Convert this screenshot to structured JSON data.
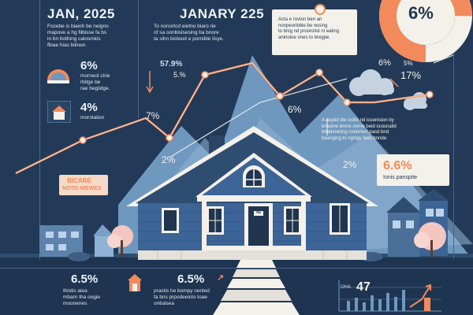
{
  "header": {
    "left_date": "JAN, 2025",
    "mid_date": "JANARY 225",
    "left_blurb": "Focebe is biaioh be neigno\nmapove a hg filbisse fa bs\nin bn bothing calosmkis\nfbiae hias biiloen.",
    "mid_blurb": "To nonortcd eietno biaro rie\nof sa oonbisisesing ba bnore\nta sihn bisteod e pornible lisye."
  },
  "callout_top": {
    "text": "Acta e rovton ben an\nnonpeoribble be nosing\nto bnig nd proorolist ni eating\naninoioe ones to bregpe."
  },
  "gauge": {
    "value": "6%",
    "fill_fraction": 0.75
  },
  "left_panel": {
    "items": [
      {
        "value": "6%",
        "text": "morneol ctrie\nrbitge be\nrae begiidge."
      },
      {
        "value": "4%",
        "text": "morotalion"
      }
    ],
    "badge_title": "BICARE",
    "badge_sub": "NOTO NIEWES"
  },
  "chart_labels": {
    "pct_579": "57.9%",
    "pct_5": "5.%",
    "pct_7": "7%",
    "pct_6_mid": "6%",
    "pct_2_left": "2%",
    "pct_2_right": "2%",
    "pct_6_right": "6%",
    "pct_17": "17%",
    "pct_5_right": "5%"
  },
  "right_panel": {
    "text": "A.aopiid tite tvotls nd iocenision by\nbriasine tenne oorne beid ocosnalid\nbrnidsneting coonnion pasd bnd\nbeanging to ngnigy faas bnnde.",
    "value": "6.6%",
    "sub": "Ionis panspite"
  },
  "house": {
    "door_number": "4S"
  },
  "bottom": {
    "left_value": "6.5%",
    "left_text": "thistis aiea\nmbarn tha oogie\nmoonenes",
    "mid_value": "6.5%",
    "mid_text": "prastis he bompy nenled\nfa bns prpodeeicto toae\nontialsea",
    "chart_value": "47",
    "chart_prefix": "OHA"
  },
  "colors": {
    "navy": "#223a57",
    "mountain": "#6f98bf",
    "house_blue": "#3d6496",
    "orange": "#f28a5b",
    "cream": "#f4f1ea"
  }
}
